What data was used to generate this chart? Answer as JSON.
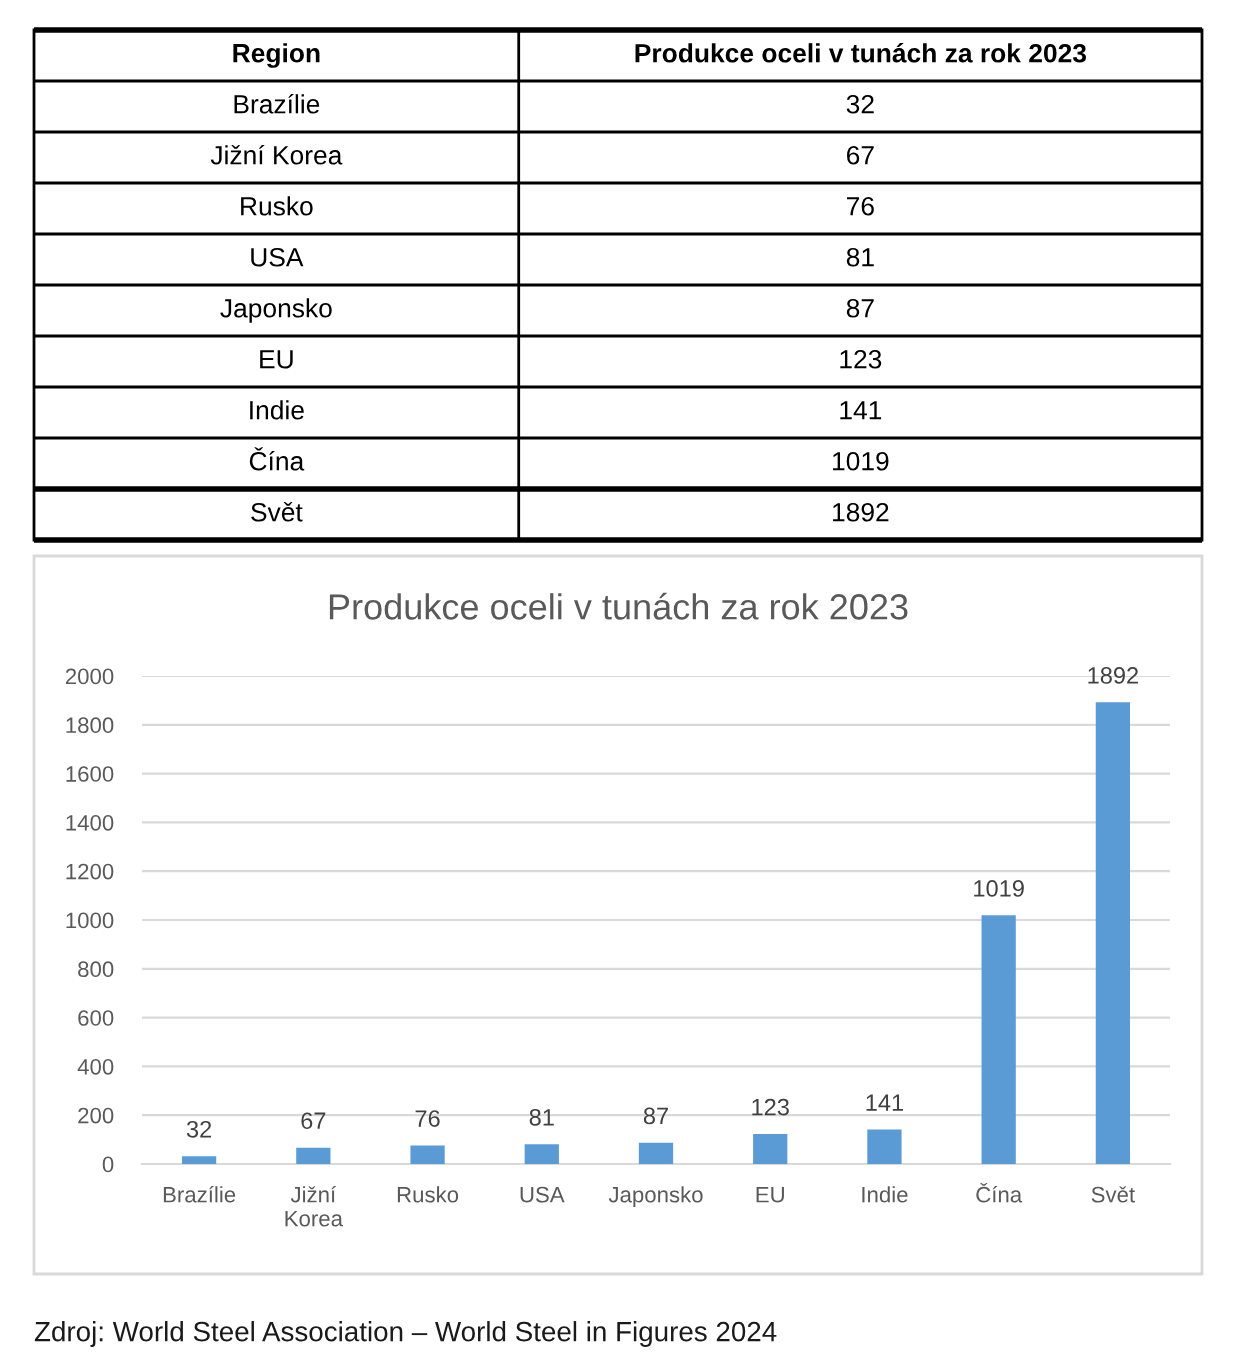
{
  "chart_data": [
    {
      "type": "other",
      "xlabel": "Region",
      "ylabel": "Produkce oceli v tunách za rok 2023",
      "categories": [
        "Brazílie",
        "Jižní Korea",
        "Rusko",
        "USA",
        "Japonsko",
        "EU",
        "Indie",
        "Čína",
        "Svět"
      ],
      "values": [
        32,
        67,
        76,
        81,
        87,
        123,
        141,
        1019,
        1892
      ],
      "data_labels": true
    },
    {
      "type": "bar",
      "title": "Produkce oceli v tunách za rok 2023",
      "categories": [
        "Brazílie",
        "Jižní Korea",
        "Rusko",
        "USA",
        "Japonsko",
        "EU",
        "Indie",
        "Čína",
        "Svět"
      ],
      "values": [
        32,
        67,
        76,
        81,
        87,
        123,
        141,
        1019,
        1892
      ],
      "color": "#5b9bd5",
      "ylim": [
        0,
        2000
      ],
      "yticks": [
        0,
        200,
        400,
        600,
        800,
        1000,
        1200,
        1400,
        1600,
        1800,
        2000
      ],
      "grid": "y",
      "data_labels": true,
      "annotations": [
        "Zdroj: World Steel Association – World Steel in Figures 2024"
      ]
    }
  ]
}
